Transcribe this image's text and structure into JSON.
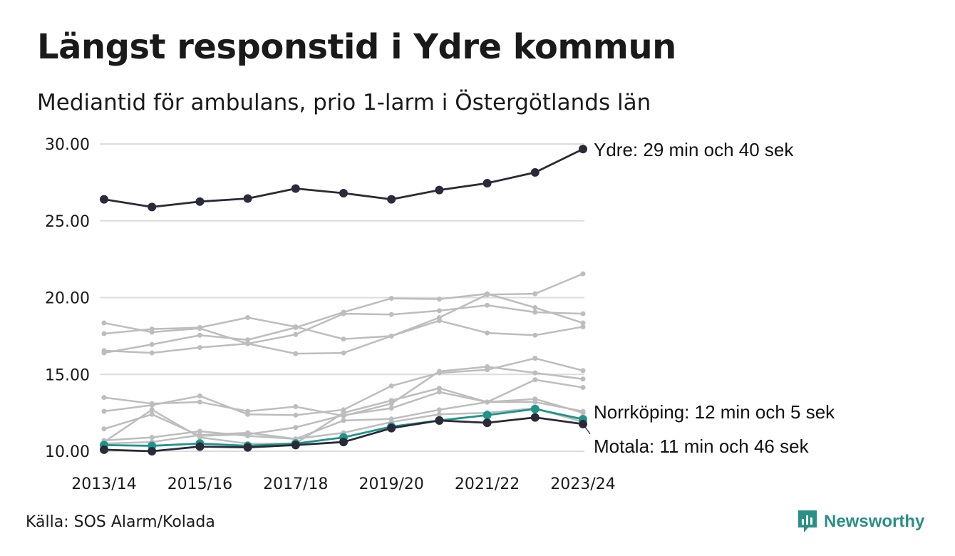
{
  "header": {
    "title": "Längst responstid i Ydre kommun",
    "subtitle": "Mediantid för ambulans, prio 1-larm i Östergötlands län"
  },
  "footer": {
    "source": "Källa: SOS Alarm/Kolada",
    "brand": "Newsworthy",
    "brand_icon": "newsworthy-logo-icon"
  },
  "colors": {
    "highlight_dark": "#2b2a38",
    "highlight_teal": "#1f9488",
    "background_series": "#bdbdbd",
    "grid": "#dcdcdc",
    "brand": "#2a8f84"
  },
  "chart_data": {
    "type": "line",
    "title": "Längst responstid i Ydre kommun",
    "subtitle": "Mediantid för ambulans, prio 1-larm i Östergötlands län",
    "xlabel": "",
    "ylabel": "",
    "x": [
      "2013/14",
      "2014/15",
      "2015/16",
      "2016/17",
      "2017/18",
      "2018/19",
      "2019/20",
      "2020/21",
      "2021/22",
      "2022/23",
      "2023/24"
    ],
    "x_tick_labels": [
      "2013/14",
      "2015/16",
      "2017/18",
      "2019/20",
      "2021/22",
      "2023/24"
    ],
    "y_ticks": [
      "10.00",
      "15.00",
      "20.00",
      "25.00",
      "30.00"
    ],
    "ylim": [
      10,
      30
    ],
    "grid": true,
    "series": [
      {
        "name": "Ydre",
        "highlight": "dark",
        "label": "Ydre: 29 min och 40 sek",
        "values": [
          26.4,
          25.9,
          26.25,
          26.45,
          27.1,
          26.8,
          26.4,
          27.0,
          27.45,
          28.15,
          29.67
        ]
      },
      {
        "name": "Norrköping",
        "highlight": "teal",
        "label": "Norrköping: 12 min och 5 sek",
        "values": [
          10.4,
          10.35,
          10.5,
          10.35,
          10.5,
          10.9,
          11.6,
          12.0,
          12.35,
          12.75,
          12.08
        ]
      },
      {
        "name": "Motala",
        "highlight": "dark",
        "label": "Motala: 11 min och 46 sek",
        "values": [
          10.1,
          10.0,
          10.3,
          10.25,
          10.4,
          10.6,
          11.5,
          12.0,
          11.85,
          12.2,
          11.77
        ]
      },
      {
        "highlight": "none",
        "values": [
          16.4,
          16.95,
          17.55,
          17.25,
          18.05,
          19.05,
          19.95,
          19.9,
          20.25,
          19.35,
          18.35
        ]
      },
      {
        "highlight": "none",
        "values": [
          17.65,
          17.95,
          18.05,
          18.7,
          18.1,
          17.3,
          17.5,
          18.7,
          20.2,
          20.25,
          21.55
        ]
      },
      {
        "highlight": "none",
        "values": [
          18.35,
          17.75,
          18.0,
          17.0,
          17.6,
          18.95,
          18.9,
          19.15,
          19.5,
          19.05,
          18.95
        ]
      },
      {
        "highlight": "none",
        "values": [
          16.55,
          16.4,
          16.75,
          17.0,
          16.35,
          16.4,
          17.5,
          18.5,
          17.7,
          17.55,
          18.1
        ]
      },
      {
        "highlight": "none",
        "values": [
          13.5,
          13.1,
          13.2,
          12.6,
          12.9,
          12.3,
          13.1,
          15.2,
          15.5,
          15.1,
          14.7
        ]
      },
      {
        "highlight": "none",
        "values": [
          12.6,
          13.0,
          13.6,
          12.4,
          12.35,
          12.7,
          14.25,
          15.1,
          15.3,
          16.05,
          15.25
        ]
      },
      {
        "highlight": "none",
        "values": [
          11.45,
          12.4,
          11.0,
          11.1,
          11.55,
          12.35,
          12.8,
          13.85,
          13.2,
          14.65,
          14.15
        ]
      },
      {
        "highlight": "none",
        "values": [
          10.6,
          12.7,
          10.9,
          10.5,
          10.5,
          12.5,
          13.3,
          14.1,
          13.2,
          13.4,
          12.5
        ]
      },
      {
        "highlight": "none",
        "values": [
          10.7,
          10.9,
          11.3,
          11.0,
          10.8,
          12.0,
          12.1,
          12.7,
          13.2,
          13.2,
          12.6
        ]
      },
      {
        "highlight": "none",
        "values": [
          10.5,
          10.6,
          11.05,
          11.2,
          10.8,
          11.2,
          11.9,
          12.4,
          12.5,
          12.8,
          11.9
        ]
      }
    ]
  }
}
